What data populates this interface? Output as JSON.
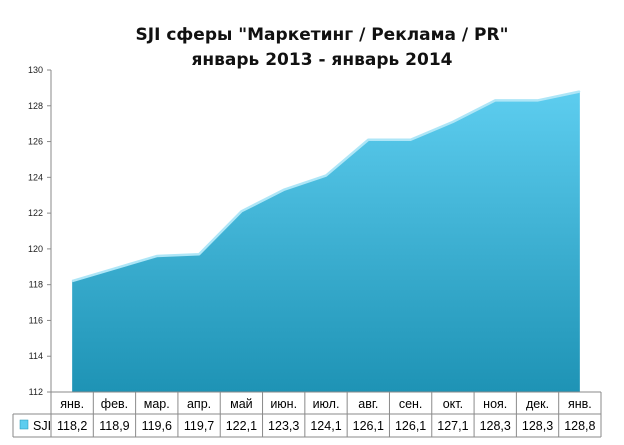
{
  "chart_data": {
    "type": "area",
    "title": "SJI сферы \"Маркетинг / Реклама / PR\"",
    "subtitle": "январь 2013 - январь 2014",
    "categories": [
      "янв.",
      "фев.",
      "мар.",
      "апр.",
      "май",
      "июн.",
      "июл.",
      "авг.",
      "сен.",
      "окт.",
      "ноя.",
      "дек.",
      "янв."
    ],
    "series": [
      {
        "name": "SJI",
        "values": [
          118.2,
          118.9,
          119.6,
          119.7,
          122.1,
          123.3,
          124.1,
          126.1,
          126.1,
          127.1,
          128.3,
          128.3,
          128.8
        ]
      }
    ],
    "value_labels": [
      "118,2",
      "118,9",
      "119,6",
      "119,7",
      "122,1",
      "123,3",
      "124,1",
      "126,1",
      "126,1",
      "127,1",
      "128,3",
      "128,3",
      "128,8"
    ],
    "ylim": [
      112,
      130
    ],
    "yticks": [
      112,
      114,
      116,
      118,
      120,
      122,
      124,
      126,
      128,
      130
    ],
    "grid": false,
    "legend": "data-table",
    "colors": {
      "area_top": "#5dcdef",
      "area_bottom": "#1e93b5",
      "edge": "#aee6f7",
      "grid": "#8a8a8a"
    }
  }
}
